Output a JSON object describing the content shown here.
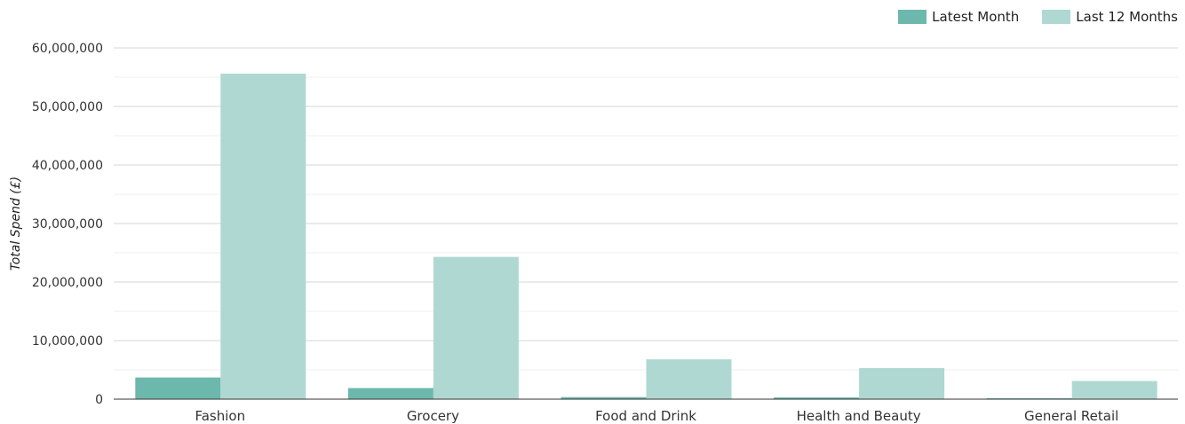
{
  "chart_data": {
    "type": "bar",
    "categories": [
      "Fashion",
      "Grocery",
      "Food and Drink",
      "Health and Beauty",
      "General Retail"
    ],
    "series": [
      {
        "name": "Latest Month",
        "values": [
          3700000,
          1900000,
          350000,
          300000,
          150000
        ],
        "color": "#6cb8ad"
      },
      {
        "name": "Last 12 Months",
        "values": [
          55600000,
          24300000,
          6800000,
          5300000,
          3100000
        ],
        "color": "#afd8d2"
      }
    ],
    "xlabel": "",
    "ylabel": "Total Spend (£)",
    "ylim": [
      0,
      60000000
    ],
    "yticks": [
      "0",
      "10,000,000",
      "20,000,000",
      "30,000,000",
      "40,000,000",
      "50,000,000",
      "60,000,000"
    ],
    "grid": true,
    "legend_position": "top-right"
  }
}
